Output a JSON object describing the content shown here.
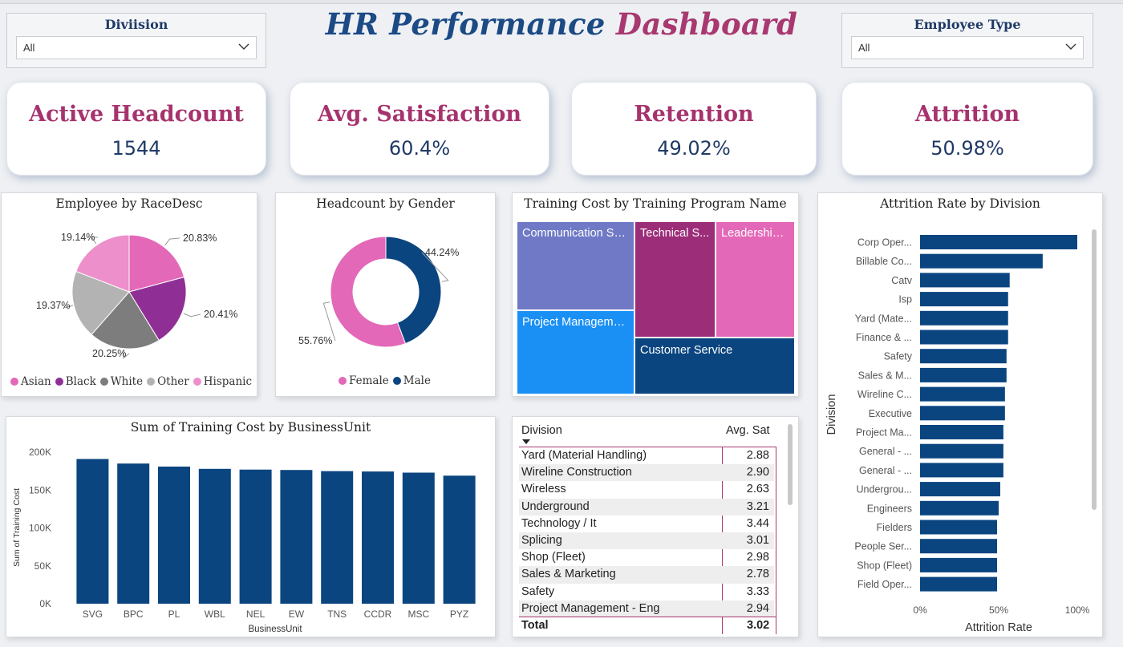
{
  "header": {
    "title_part1": "HR Performance",
    "title_part2": "Dashboard"
  },
  "slicers": {
    "division": {
      "title": "Diviision",
      "value": "All"
    },
    "employee_type": {
      "title": "Employee Type",
      "value": "All"
    }
  },
  "kpis": [
    {
      "label": "Active Headcount",
      "value": "1544"
    },
    {
      "label": "Avg. Satisfaction",
      "value": "60.4%"
    },
    {
      "label": "Retention",
      "value": "49.02%"
    },
    {
      "label": "Attrition",
      "value": "50.98%"
    }
  ],
  "colors": {
    "navy": "#0b4580",
    "magenta": "#a8386f",
    "pink": "#e468b8",
    "purple": "#8f2f96",
    "grey": "#7d7d7d",
    "lightgrey": "#b3b3b3",
    "lightpink": "#ec8fca",
    "periwinkle": "#6f79c6",
    "skyblue": "#1a90f5",
    "plum": "#9c2d78"
  },
  "chart_data": [
    {
      "id": "race",
      "type": "pie",
      "title": "Employee by RaceDesc",
      "slices": [
        {
          "name": "Asian",
          "value": 20.83,
          "label": "20.83%",
          "color": "#e468b8"
        },
        {
          "name": "Black",
          "value": 20.41,
          "label": "20.41%",
          "color": "#8f2f96"
        },
        {
          "name": "White",
          "value": 20.25,
          "label": "20.25%",
          "color": "#7d7d7d"
        },
        {
          "name": "Other",
          "value": 19.37,
          "label": "19.37%",
          "color": "#b3b3b3"
        },
        {
          "name": "Hispanic",
          "value": 19.14,
          "label": "19.14%",
          "color": "#ec8fca"
        }
      ],
      "legend": "bottom"
    },
    {
      "id": "gender",
      "type": "pie",
      "subtype": "donut",
      "title": "Headcount by Gender",
      "slices": [
        {
          "name": "Male",
          "value": 44.24,
          "label": "44.24%",
          "color": "#0b4580"
        },
        {
          "name": "Female",
          "value": 55.76,
          "label": "55.76%",
          "color": "#e468b8"
        }
      ],
      "legend": "bottom",
      "legend_order": [
        "Female",
        "Male"
      ]
    },
    {
      "id": "training_program",
      "type": "treemap",
      "title": "Training Cost by Training Program Name",
      "categories": [
        "Communication Sk...",
        "Project Manageme...",
        "Technical S...",
        "Leadership ...",
        "Customer Service"
      ]
    },
    {
      "id": "business_unit",
      "type": "bar",
      "title": "Sum of Training Cost by BusinessUnit",
      "xlabel": "BusinessUnit",
      "ylabel": "Sum of Training Cost",
      "categories": [
        "SVG",
        "BPC",
        "PL",
        "WBL",
        "NEL",
        "EW",
        "TNS",
        "CCDR",
        "MSC",
        "PYZ"
      ],
      "values": [
        191000,
        185000,
        181000,
        178000,
        177000,
        176500,
        175000,
        174500,
        173000,
        169000
      ],
      "ylim": [
        0,
        200000
      ],
      "yticks": [
        "0K",
        "50K",
        "100K",
        "150K",
        "200K"
      ],
      "color": "#0b4580"
    },
    {
      "id": "division_sat",
      "type": "table",
      "columns": [
        "Division",
        "Avg. Sat"
      ],
      "rows": [
        [
          "Yard (Material Handling)",
          "2.88"
        ],
        [
          "Wireline Construction",
          "2.90"
        ],
        [
          "Wireless",
          "2.63"
        ],
        [
          "Underground",
          "3.21"
        ],
        [
          "Technology / It",
          "3.44"
        ],
        [
          "Splicing",
          "3.01"
        ],
        [
          "Shop (Fleet)",
          "2.98"
        ],
        [
          "Sales & Marketing",
          "2.78"
        ],
        [
          "Safety",
          "3.33"
        ],
        [
          "Project Management - Eng",
          "2.94"
        ]
      ],
      "total": [
        "Total",
        "3.02"
      ]
    },
    {
      "id": "attrition_division",
      "type": "bar",
      "orientation": "horizontal",
      "title": "Attrition Rate by Division",
      "xlabel": "Attrition Rate",
      "ylabel": "Division",
      "xticks": [
        "0%",
        "50%",
        "100%"
      ],
      "xlim": [
        0,
        100
      ],
      "categories": [
        "Corp Oper...",
        "Billable Co...",
        "Catv",
        "Isp",
        "Yard (Mate...",
        "Finance & ...",
        "Safety",
        "Sales & M...",
        "Wireline C...",
        "Executive",
        "Project Ma...",
        "General - ...",
        "General - ...",
        "Undergrou...",
        "Engineers",
        "Fielders",
        "People Ser...",
        "Shop (Fleet)",
        "Field Oper..."
      ],
      "values": [
        100,
        78,
        57,
        56,
        56,
        56,
        55,
        55,
        54,
        54,
        53,
        53,
        53,
        51,
        50,
        49,
        49,
        49,
        49
      ],
      "color": "#0b4580"
    }
  ]
}
